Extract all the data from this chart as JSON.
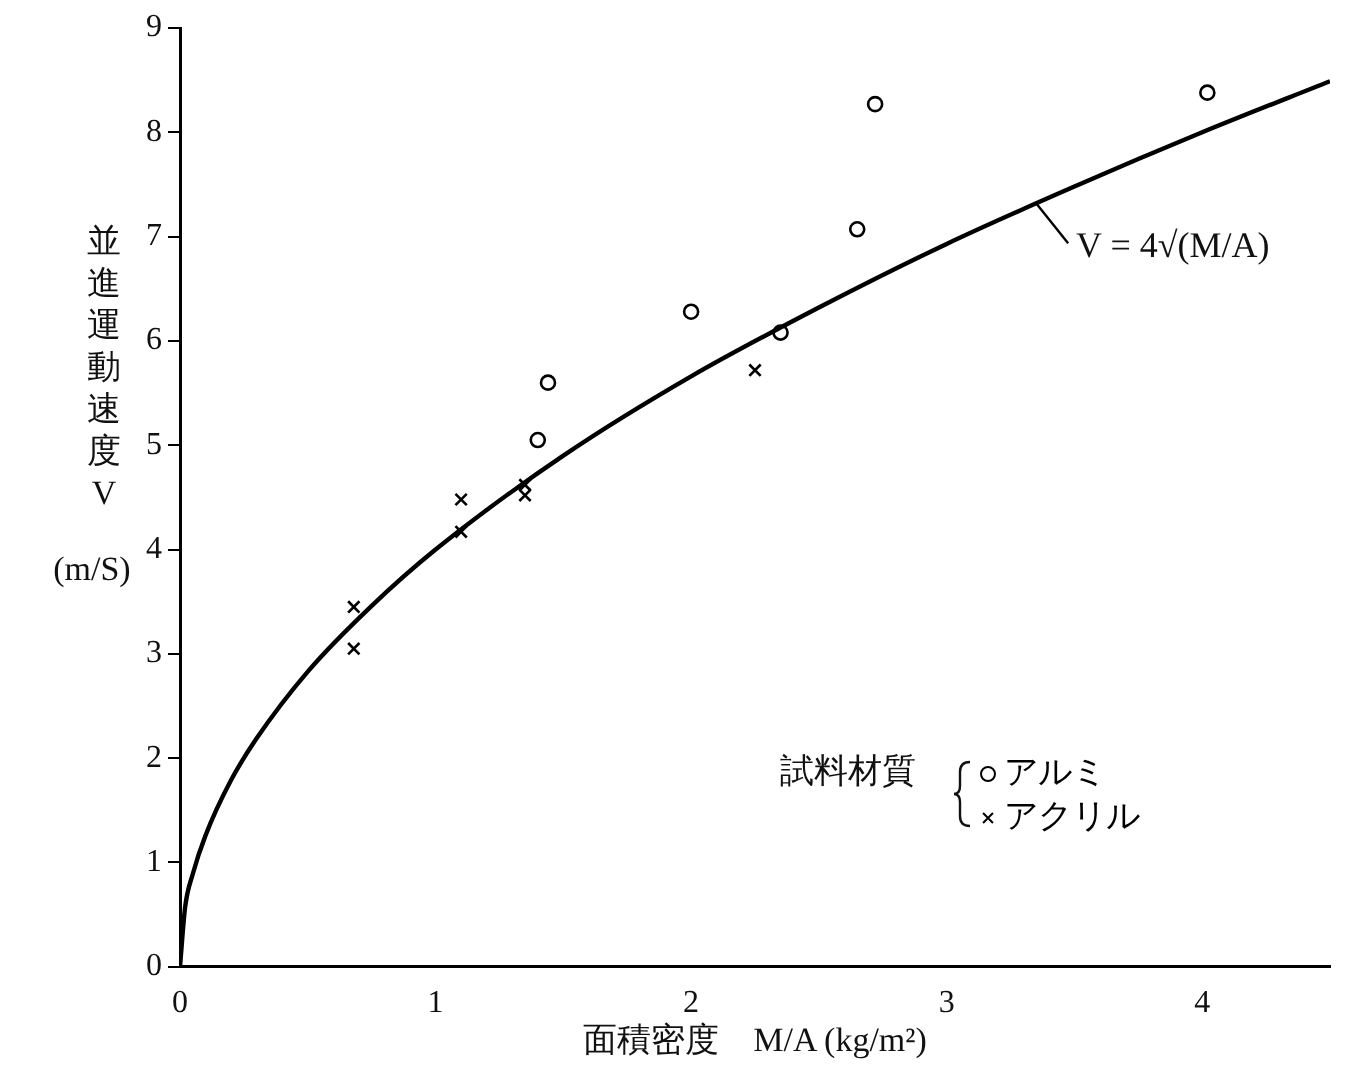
{
  "chart_data": {
    "type": "scatter",
    "xlabel": "面積密度　M/A (kg/m²)",
    "ylabel": "並進運動速度V (m/S)",
    "legend_title": "試料材質",
    "legend": "bottom right",
    "xlim": [
      0,
      4.5
    ],
    "xticks": [
      0,
      1,
      2,
      3,
      4
    ],
    "ylim": [
      0,
      9
    ],
    "yticks": [
      0,
      1,
      2,
      3,
      4,
      5,
      6,
      7,
      8,
      9
    ],
    "grid": false,
    "series": [
      {
        "name": "アルミ",
        "marker": "circle",
        "color": "#000000",
        "x": [
          1.4,
          1.44,
          2.0,
          2.35,
          2.65,
          2.72,
          4.02
        ],
        "values": [
          5.05,
          5.6,
          6.28,
          6.08,
          7.07,
          8.27,
          8.38
        ]
      },
      {
        "name": "アクリル",
        "marker": "cross",
        "color": "#000000",
        "x": [
          0.68,
          0.68,
          1.1,
          1.1,
          1.35,
          1.35,
          2.25
        ],
        "values": [
          3.45,
          3.05,
          4.48,
          4.17,
          4.62,
          4.52,
          5.72
        ]
      },
      {
        "type": "line",
        "marker": "none",
        "color": "#000000",
        "x": [
          0,
          0.02,
          0.05,
          0.1,
          0.2,
          0.3,
          0.5,
          0.75,
          1,
          1.5,
          2,
          2.5,
          3,
          3.5,
          4,
          4.5
        ],
        "values": [
          0,
          0.57,
          0.89,
          1.26,
          1.79,
          2.19,
          2.83,
          3.46,
          4,
          4.9,
          5.66,
          6.32,
          6.93,
          7.48,
          8,
          8.49
        ]
      }
    ],
    "annotations": [
      {
        "text": "V = 4√(M/A)",
        "x": 3.35,
        "y": 7.32
      }
    ]
  }
}
